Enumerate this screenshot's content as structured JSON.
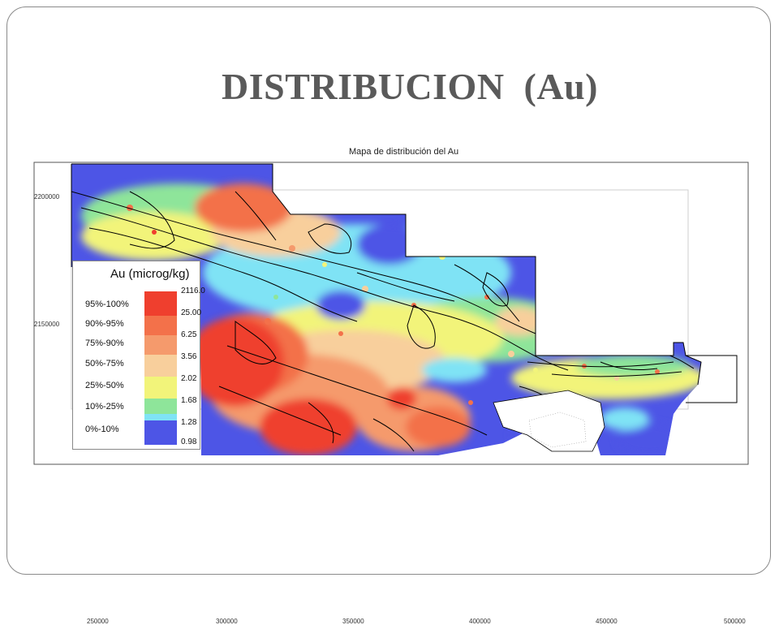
{
  "slide": {
    "title": "DISTRIBUCION  (Au)"
  },
  "map": {
    "caption": "Mapa de distribución del Au",
    "y_ticks": [
      "2200000",
      "2150000"
    ],
    "x_ticks": [
      "250000",
      "300000",
      "350000",
      "400000",
      "450000",
      "500000"
    ],
    "legend": {
      "title": "Au (microg/kg)",
      "classes": [
        {
          "label": "95%-100%",
          "value": "2116.0",
          "color": "#ef3f2e"
        },
        {
          "label": "90%-95%",
          "value": "25.00",
          "color": "#f3714a"
        },
        {
          "label": "75%-90%",
          "value": "6.25",
          "color": "#f59a6c"
        },
        {
          "label": "50%-75%",
          "value": "3.56",
          "color": "#f8cf9c"
        },
        {
          "label": "25%-50%",
          "value": "2.02",
          "color": "#f2f47a"
        },
        {
          "label": "10%-25%",
          "value": "1.68",
          "color": "#8ee59a"
        },
        {
          "label": "0%-10%",
          "value": "1.28",
          "color": "#7fe3f5"
        }
      ],
      "min_value": "0.98",
      "min_color": "#4d55e6"
    }
  }
}
